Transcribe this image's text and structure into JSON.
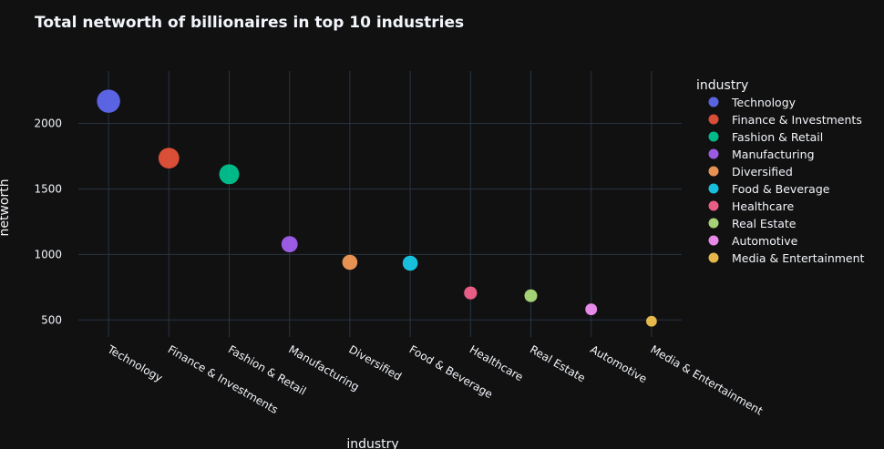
{
  "chart_data": {
    "type": "scatter",
    "title": "Total networth of billionaires in top 10 industries",
    "xlabel": "industry",
    "ylabel": "networth",
    "legend_title": "industry",
    "legend_placement": "right",
    "grid": true,
    "ylim": [
      370,
      2400
    ],
    "yticks": [
      500,
      1000,
      1500,
      2000
    ],
    "categories": [
      "Technology",
      "Finance & Investments",
      "Fashion & Retail",
      "Manufacturing",
      "Diversified",
      "Food & Beverage",
      "Healthcare",
      "Real Estate",
      "Automotive",
      "Media & Entertainment"
    ],
    "values": [
      2170,
      1735,
      1612,
      1078,
      940,
      933,
      706,
      685,
      581,
      490
    ],
    "colors": [
      "#636efa",
      "#EF553B",
      "#00cc96",
      "#ab63fa",
      "#FFA15A",
      "#19d3f3",
      "#FF6692",
      "#B6E880",
      "#FF97FF",
      "#FECB52"
    ],
    "marker_size": "networth"
  }
}
